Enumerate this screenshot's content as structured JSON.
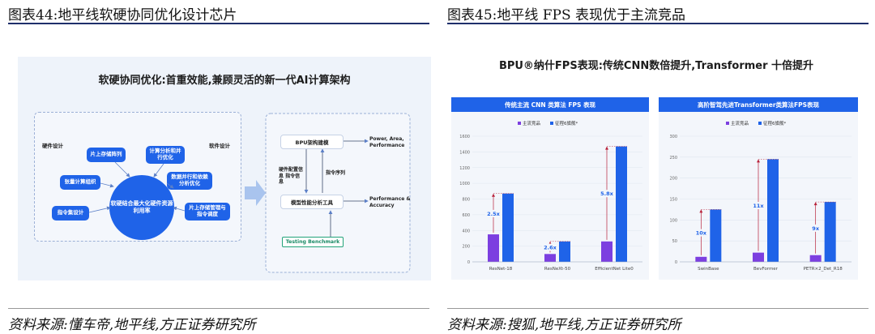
{
  "left": {
    "fig_title": "图表44:地平线软硬协同优化设计芯片",
    "source": "资料来源:懂车帝,地平线,方正证券研究所",
    "heading": "软硬协同优化:首重效能,兼顾灵活的新一代AI计算架构",
    "hardware_label": "硬件设计",
    "software_label": "软件设计",
    "hw_boxes": [
      "片上存储阵列",
      "张量计算组织",
      "指令集设计"
    ],
    "sw_boxes": [
      "计算分析和并行优化",
      "数据并行和依赖分析优化",
      "片上存储管理与指令调度"
    ],
    "center": "软硬结合最大化硬件资源利用率",
    "flow": {
      "box_top": "BPU架构建模",
      "box_bottom": "模型性能分析工具",
      "out_top": "Power, Area, Performance",
      "out_bottom": "Performance & Accuracy",
      "label_left": "硬件配置信息 指令信息",
      "label_right": "指令序列",
      "benchmark": "Testing Benchmark"
    }
  },
  "right": {
    "fig_title": "图表45:地平线 FPS 表现优于主流竞品",
    "source": "资料来源:搜狐,地平线,方正证券研究所",
    "heading": "BPU®纳什FPS表现:传统CNN数倍提升,Transformer 十倍提升"
  },
  "chart_data": [
    {
      "type": "bar",
      "title": "传统主流 CNN 类算法 FPS 表现",
      "categories": [
        "ResNet-18",
        "ResNeXt-50",
        "EfficientNet Lite0"
      ],
      "series": [
        {
          "name": "主流竞品",
          "values": [
            350,
            100,
            260
          ],
          "color": "#7c3fe0"
        },
        {
          "name": "征程6旗舰*",
          "values": [
            870,
            260,
            1470
          ],
          "color": "#1f63e8"
        }
      ],
      "annotations": [
        "2.5x",
        "2.6x",
        "5.8x"
      ],
      "ylim": [
        0,
        1600
      ],
      "yticks": [
        0,
        200,
        400,
        600,
        800,
        1000,
        1200,
        1400,
        1600
      ]
    },
    {
      "type": "bar",
      "title": "高阶智驾先进Transformer类算法FPS表现",
      "categories": [
        "SwinBase",
        "BevFormer",
        "PETR×2_Det_R18"
      ],
      "series": [
        {
          "name": "主流竞品",
          "values": [
            12,
            22,
            16
          ],
          "color": "#7c3fe0"
        },
        {
          "name": "征程6旗舰*",
          "values": [
            125,
            245,
            143
          ],
          "color": "#1f63e8"
        }
      ],
      "annotations": [
        "10x",
        "11x",
        "9x"
      ],
      "ylim": [
        0,
        300
      ],
      "yticks": [
        0,
        50,
        100,
        150,
        200,
        250,
        300
      ]
    }
  ]
}
